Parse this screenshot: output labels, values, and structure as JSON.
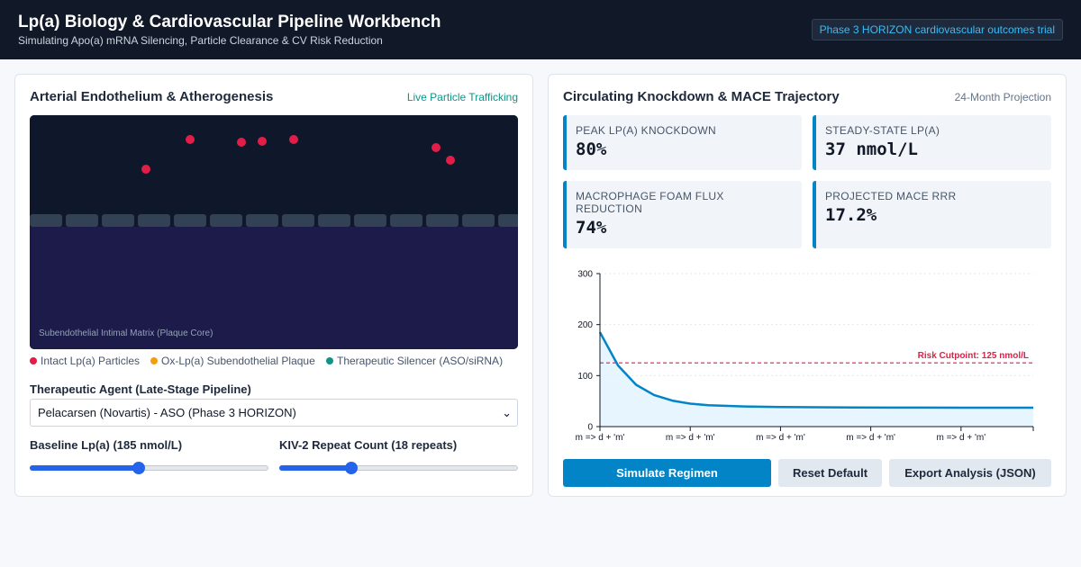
{
  "header": {
    "title": "Lp(a) Biology & Cardiovascular Pipeline Workbench",
    "subtitle": "Simulating Apo(a) mRNA Silencing, Particle Clearance & CV Risk Reduction",
    "badge": "Phase 3 HORIZON cardiovascular outcomes trial"
  },
  "left_panel": {
    "title": "Arterial Endothelium & Atherogenesis",
    "tag": "Live Particle Trafficking",
    "matrix_label": "Subendothelial Intimal Matrix (Plaque Core)",
    "legend": [
      {
        "label": "Intact Lp(a) Particles",
        "color": "#e11d48"
      },
      {
        "label": "Ox-Lp(a) Subendothelial Plaque",
        "color": "#f59e0b"
      },
      {
        "label": "Therapeutic Silencer (ASO/siRNA)",
        "color": "#0d9488"
      }
    ],
    "agent": {
      "label": "Therapeutic Agent (Late-Stage Pipeline)",
      "selected": "Pelacarsen (Novartis) - ASO (Phase 3 HORIZON)"
    },
    "baseline": {
      "label": "Baseline Lp(a) (185 nmol/L)",
      "value_fraction": 0.455
    },
    "kiv2": {
      "label": "KIV-2 Repeat Count (18 repeats)",
      "value_fraction": 0.3
    }
  },
  "right_panel": {
    "title": "Circulating Knockdown & MACE Trajectory",
    "tag": "24-Month Projection",
    "metrics": [
      {
        "label": "PEAK LP(A) KNOCKDOWN",
        "value": "80%"
      },
      {
        "label": "STEADY-STATE LP(A)",
        "value": "37 nmol/L"
      },
      {
        "label": "MACRO­PHAGE FOAM FLUX REDUCTION",
        "value": "74%"
      },
      {
        "label": "PROJECTED MACE RRR",
        "value": "17.2%"
      }
    ],
    "buttons": {
      "simulate": "Simulate Regimen",
      "reset": "Reset Default",
      "export": "Export Analysis (JSON)"
    }
  },
  "chart_data": {
    "type": "area",
    "x": [
      0,
      1,
      2,
      3,
      4,
      5,
      6,
      8,
      10,
      12,
      14,
      16,
      18,
      20,
      22,
      24
    ],
    "series": [
      {
        "values": [
          185,
          120,
          82,
          62,
          51,
          45,
          42,
          39.5,
          38.5,
          38,
          37.5,
          37.3,
          37.2,
          37.1,
          37,
          37
        ]
      }
    ],
    "x_tick_labels": [
      "m => d + 'm'",
      "m => d + 'm'",
      "m => d + 'm'",
      "m => d + 'm'",
      "m => d + 'm'"
    ],
    "x_ticks": [
      0,
      5,
      10,
      15,
      20
    ],
    "xlim": [
      0,
      24
    ],
    "y_ticks": [
      0,
      100,
      200,
      300
    ],
    "ylim": [
      0,
      300
    ],
    "threshold": {
      "value": 125,
      "label": "Risk Cutpoint: 125 nmol/L",
      "color": "#e11d48"
    },
    "series_color": "#0284c7",
    "grid": true
  }
}
